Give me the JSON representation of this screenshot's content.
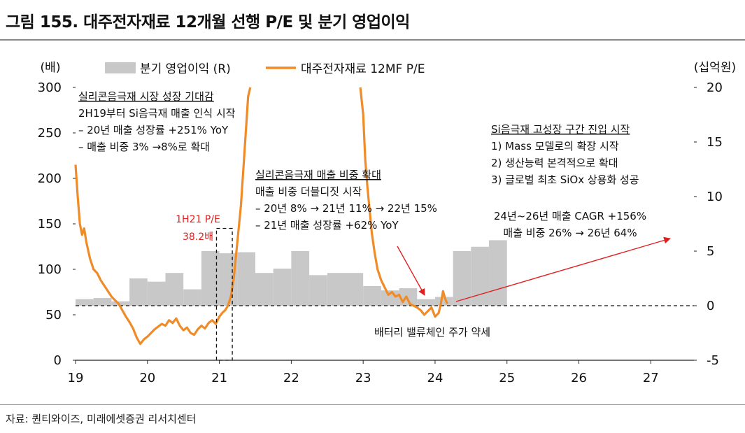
{
  "figure_title": "그림 155. 대주전자재료 12개월 선행 P/E 및 분기 영업이익",
  "source": "자료: 퀀티와이즈, 미래에셋증권 리서치센터",
  "chart_data": {
    "type": "bar+line",
    "title": "대주전자재료 12개월 선행 P/E 및 분기 영업이익",
    "left_axis": {
      "unit": "(배)",
      "ylim": [
        0,
        300
      ],
      "ticks": [
        "0",
        "50",
        "100",
        "150",
        "200",
        "250",
        "300"
      ]
    },
    "right_axis": {
      "unit": "(십억원)",
      "ylim": [
        -5,
        20
      ],
      "ticks": [
        "-5",
        "0",
        "5",
        "10",
        "15",
        "20"
      ]
    },
    "x_axis": {
      "xlim": [
        19,
        27.6
      ],
      "ticks": [
        "19",
        "20",
        "21",
        "22",
        "23",
        "24",
        "25",
        "26",
        "27"
      ]
    },
    "legend": {
      "placement": "top",
      "bar_label": "분기 영업이익 (R)",
      "line_label": "대주전자재료 12MF P/E"
    },
    "colors": {
      "bars": "#c8c8c8",
      "line": "#f08c28",
      "arrow": "#e02020",
      "annotation_red": "#e02020",
      "dashed": "#111111"
    },
    "bar_series": {
      "name": "분기 영업이익 (R)",
      "unit": "십억원",
      "bars": [
        {
          "start": 19.0,
          "end": 19.25,
          "value": 0.6
        },
        {
          "start": 19.25,
          "end": 19.5,
          "value": 0.7
        },
        {
          "start": 19.5,
          "end": 19.75,
          "value": 0.4
        },
        {
          "start": 19.75,
          "end": 20.0,
          "value": 2.5
        },
        {
          "start": 20.0,
          "end": 20.25,
          "value": 2.2
        },
        {
          "start": 20.25,
          "end": 20.5,
          "value": 3.0
        },
        {
          "start": 20.5,
          "end": 20.75,
          "value": 1.5
        },
        {
          "start": 20.75,
          "end": 21.0,
          "value": 5.0
        },
        {
          "start": 21.0,
          "end": 21.25,
          "value": 4.8
        },
        {
          "start": 21.25,
          "end": 21.5,
          "value": 4.9
        },
        {
          "start": 21.5,
          "end": 21.75,
          "value": 3.0
        },
        {
          "start": 21.75,
          "end": 22.0,
          "value": 3.4
        },
        {
          "start": 22.0,
          "end": 22.25,
          "value": 5.0
        },
        {
          "start": 22.25,
          "end": 22.5,
          "value": 2.8
        },
        {
          "start": 22.5,
          "end": 22.75,
          "value": 3.0
        },
        {
          "start": 22.75,
          "end": 23.0,
          "value": 3.0
        },
        {
          "start": 23.0,
          "end": 23.25,
          "value": 1.8
        },
        {
          "start": 23.25,
          "end": 23.5,
          "value": 1.4
        },
        {
          "start": 23.5,
          "end": 23.75,
          "value": 1.6
        },
        {
          "start": 23.75,
          "end": 24.0,
          "value": 0.6
        },
        {
          "start": 24.0,
          "end": 24.25,
          "value": 0.8
        },
        {
          "start": 24.25,
          "end": 24.5,
          "value": 5.0
        },
        {
          "start": 24.5,
          "end": 24.75,
          "value": 5.4
        },
        {
          "start": 24.75,
          "end": 25.0,
          "value": 6.0
        }
      ]
    },
    "line_series": {
      "name": "대주전자재료 12MF P/E",
      "unit": "배",
      "points": [
        [
          19.0,
          215
        ],
        [
          19.03,
          180
        ],
        [
          19.06,
          150
        ],
        [
          19.09,
          138
        ],
        [
          19.12,
          145
        ],
        [
          19.15,
          130
        ],
        [
          19.2,
          112
        ],
        [
          19.25,
          100
        ],
        [
          19.3,
          96
        ],
        [
          19.35,
          88
        ],
        [
          19.4,
          82
        ],
        [
          19.45,
          76
        ],
        [
          19.5,
          70
        ],
        [
          19.55,
          66
        ],
        [
          19.6,
          62
        ],
        [
          19.65,
          55
        ],
        [
          19.7,
          48
        ],
        [
          19.75,
          42
        ],
        [
          19.8,
          35
        ],
        [
          19.85,
          25
        ],
        [
          19.9,
          18
        ],
        [
          19.95,
          23
        ],
        [
          20.0,
          26
        ],
        [
          20.05,
          30
        ],
        [
          20.1,
          34
        ],
        [
          20.15,
          37
        ],
        [
          20.2,
          40
        ],
        [
          20.25,
          38
        ],
        [
          20.3,
          44
        ],
        [
          20.35,
          41
        ],
        [
          20.4,
          46
        ],
        [
          20.45,
          38
        ],
        [
          20.5,
          33
        ],
        [
          20.55,
          36
        ],
        [
          20.6,
          30
        ],
        [
          20.65,
          28
        ],
        [
          20.7,
          34
        ],
        [
          20.75,
          38
        ],
        [
          20.8,
          35
        ],
        [
          20.85,
          41
        ],
        [
          20.9,
          44
        ],
        [
          20.95,
          40
        ],
        [
          21.0,
          48
        ],
        [
          21.04,
          52
        ],
        [
          21.08,
          55
        ],
        [
          21.12,
          60
        ],
        [
          21.16,
          70
        ],
        [
          21.2,
          90
        ],
        [
          21.25,
          130
        ],
        [
          21.3,
          170
        ],
        [
          21.35,
          230
        ],
        [
          21.4,
          290
        ],
        [
          21.43,
          300
        ]
      ],
      "points_2": [
        [
          22.96,
          300
        ],
        [
          23.0,
          270
        ],
        [
          23.03,
          220
        ],
        [
          23.06,
          190
        ],
        [
          23.09,
          165
        ],
        [
          23.12,
          140
        ],
        [
          23.16,
          118
        ],
        [
          23.2,
          100
        ],
        [
          23.25,
          88
        ],
        [
          23.3,
          80
        ],
        [
          23.35,
          72
        ],
        [
          23.4,
          75
        ],
        [
          23.45,
          70
        ],
        [
          23.5,
          72
        ],
        [
          23.55,
          64
        ],
        [
          23.6,
          70
        ],
        [
          23.65,
          62
        ],
        [
          23.7,
          60
        ],
        [
          23.75,
          58
        ],
        [
          23.8,
          55
        ],
        [
          23.85,
          50
        ],
        [
          23.9,
          54
        ],
        [
          23.95,
          58
        ],
        [
          24.0,
          48
        ],
        [
          24.05,
          52
        ],
        [
          24.08,
          62
        ],
        [
          24.11,
          76
        ],
        [
          24.14,
          68
        ],
        [
          24.17,
          62
        ]
      ],
      "values_note": "line breaks above 300 (off-scale peaks in 2021–2022)"
    },
    "reference_line": {
      "value_left": 60,
      "value_right": 0,
      "style": "dashed"
    },
    "highlight_box": {
      "x_start": 20.96,
      "x_end": 21.18,
      "label_1": "1H21 P/E",
      "label_2": "38.2배"
    },
    "annotations": [
      {
        "id": "ann1",
        "title": "실리콘음극재 시장 성장 기대감",
        "lines": [
          "2H19부터 Si음극재 매출 인식 시작",
          "– 20년 매출 성장률 +251% YoY",
          "– 매출 비중 3% →8%로 확대"
        ]
      },
      {
        "id": "ann2",
        "title": "실리콘음극재 매출 비중 확대",
        "lines": [
          "매출 비중 더블디짓 시작",
          "– 20년 8% → 21년 11% → 22년 15%",
          "– 21년 매출 성장률 +62% YoY"
        ]
      },
      {
        "id": "ann3",
        "title": "Si음극재 고성장 구간 진입 시작",
        "lines": [
          "1) Mass 모델로의 확장 시작",
          "2) 생산능력 본격적으로 확대",
          "3) 글로벌 최초 SiOx 상용화 성공"
        ]
      },
      {
        "id": "ann4",
        "title": "",
        "lines": [
          "24년~26년 매출 CAGR +156%",
          "매출 비중 26% → 26년 64%"
        ]
      },
      {
        "id": "ann5",
        "title": "",
        "lines": [
          "배터리 밸류체인 주가 약세"
        ]
      }
    ]
  }
}
